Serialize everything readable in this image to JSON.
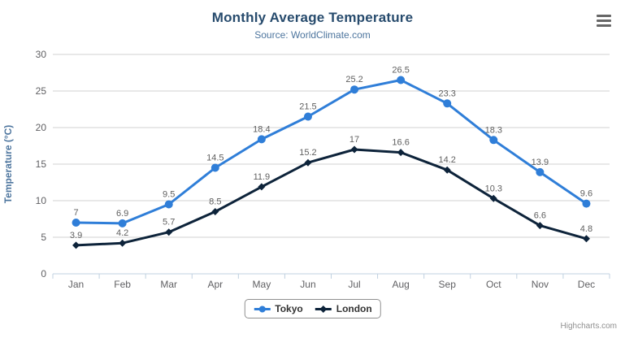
{
  "credits": "Highcharts.com",
  "context_menu": {
    "icon": "hamburger-icon"
  },
  "colors": {
    "title": "#274b6d",
    "subtitle": "#4d759e",
    "axis_title": "#4d759e",
    "axis_labels": "#606063",
    "data_labels": "#606060",
    "gridline": "#d0d0d0",
    "axis_line": "#c0d0e0",
    "legend_border": "#909090",
    "credits_text": "#909090"
  },
  "chart_data": {
    "type": "line",
    "title": "Monthly Average Temperature",
    "subtitle": "Source: WorldClimate.com",
    "xlabel": "",
    "ylabel": "Temperature (°C)",
    "categories": [
      "Jan",
      "Feb",
      "Mar",
      "Apr",
      "May",
      "Jun",
      "Jul",
      "Aug",
      "Sep",
      "Oct",
      "Nov",
      "Dec"
    ],
    "series": [
      {
        "name": "Tokyo",
        "color": "#2f7ed8",
        "marker": "circle",
        "values": [
          7,
          6.9,
          9.5,
          14.5,
          18.4,
          21.5,
          25.2,
          26.5,
          23.3,
          18.3,
          13.9,
          9.6
        ]
      },
      {
        "name": "London",
        "color": "#0d233a",
        "marker": "diamond",
        "values": [
          3.9,
          4.2,
          5.7,
          8.5,
          11.9,
          15.2,
          17,
          16.6,
          14.2,
          10.3,
          6.6,
          4.8
        ]
      }
    ],
    "ylim": [
      0,
      30
    ],
    "ytick_step": 5,
    "grid": true,
    "data_labels_visible": true,
    "legend_position": "bottom"
  }
}
